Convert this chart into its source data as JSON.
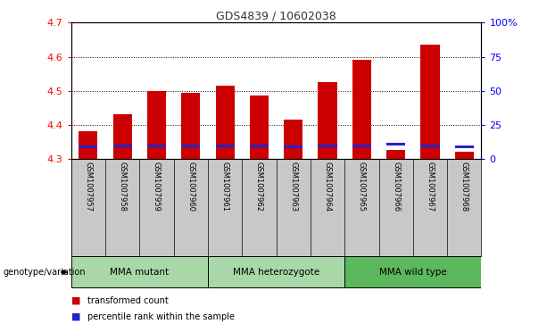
{
  "title": "GDS4839 / 10602038",
  "samples": [
    "GSM1007957",
    "GSM1007958",
    "GSM1007959",
    "GSM1007960",
    "GSM1007961",
    "GSM1007962",
    "GSM1007963",
    "GSM1007964",
    "GSM1007965",
    "GSM1007966",
    "GSM1007967",
    "GSM1007968"
  ],
  "red_values": [
    4.38,
    4.43,
    4.5,
    4.495,
    4.515,
    4.485,
    4.415,
    4.525,
    4.59,
    4.325,
    4.635,
    4.32
  ],
  "blue_values": [
    4.335,
    4.338,
    4.338,
    4.338,
    4.338,
    4.337,
    4.335,
    4.338,
    4.338,
    4.342,
    4.338,
    4.335
  ],
  "bar_base": 4.3,
  "ylim_left": [
    4.3,
    4.7
  ],
  "ylim_right": [
    0,
    100
  ],
  "yticks_left": [
    4.3,
    4.4,
    4.5,
    4.6,
    4.7
  ],
  "yticks_right": [
    0,
    25,
    50,
    75,
    100
  ],
  "groups": [
    {
      "label": "MMA mutant",
      "start": 0,
      "end": 4
    },
    {
      "label": "MMA heterozygote",
      "start": 4,
      "end": 8
    },
    {
      "label": "MMA wild type",
      "start": 8,
      "end": 12
    }
  ],
  "group_colors": [
    "#a8d8a8",
    "#a8d8a8",
    "#5cb85c"
  ],
  "red_color": "#cc0000",
  "blue_color": "#2222cc",
  "bar_width": 0.55,
  "tick_label_area_color": "#c8c8c8",
  "legend_red": "transformed count",
  "legend_blue": "percentile rank within the sample",
  "genotype_label": "genotype/variation"
}
